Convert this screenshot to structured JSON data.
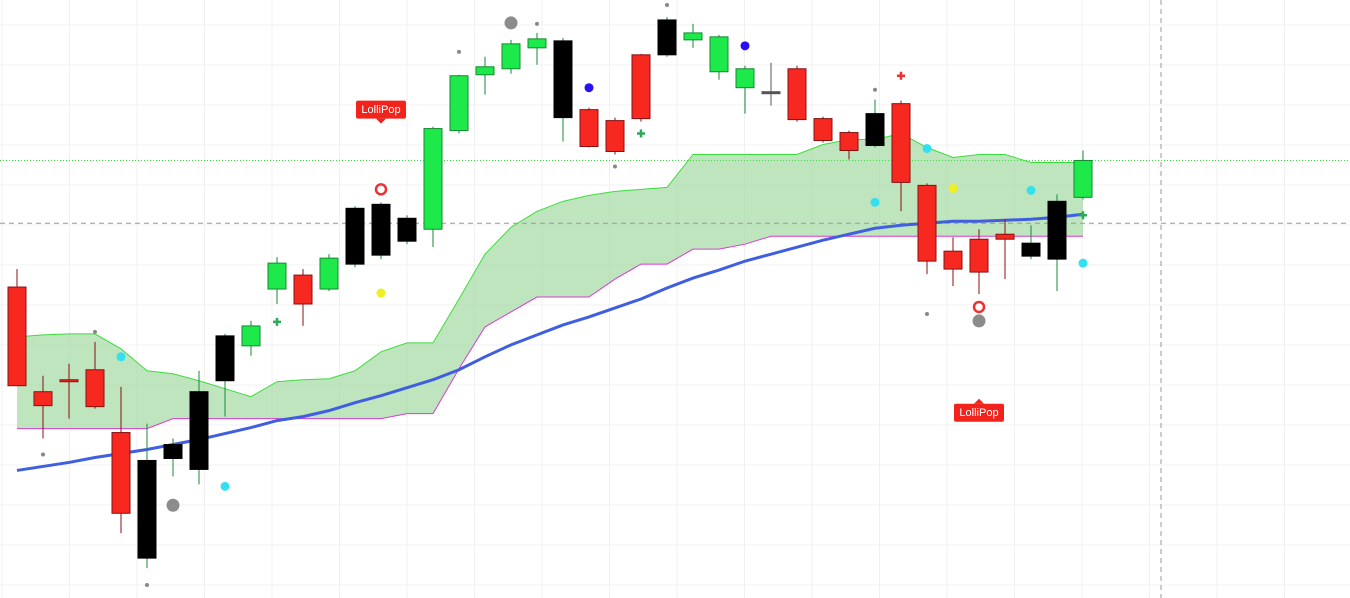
{
  "chart_data": {
    "type": "candlestick",
    "ylim": [
      0,
      600
    ],
    "candles": {
      "open": [
        312,
        207,
        219,
        229,
        166,
        138,
        154,
        207,
        263,
        253,
        310,
        324,
        310,
        391,
        395,
        381,
        370,
        469,
        525,
        531,
        552,
        559,
        490,
        479,
        545,
        580,
        560,
        528,
        512,
        508,
        531,
        481,
        467,
        486,
        496,
        414,
        348,
        360,
        365,
        356,
        398,
        402
      ],
      "high": [
        330,
        223,
        235,
        257,
        212,
        175,
        160,
        228,
        265,
        278,
        342,
        330,
        345,
        393,
        397,
        384,
        473,
        525,
        543,
        560,
        567,
        562,
        492,
        482,
        546,
        583,
        576,
        565,
        534,
        537,
        534,
        483,
        469,
        500,
        499,
        416,
        362,
        370,
        380,
        374,
        405,
        449
      ],
      "low": [
        213,
        160,
        180,
        190,
        65,
        30,
        122,
        114,
        182,
        243,
        295,
        273,
        308,
        332,
        340,
        355,
        352,
        466,
        505,
        526,
        535,
        458,
        452,
        445,
        478,
        543,
        552,
        520,
        486,
        494,
        478,
        457,
        440,
        452,
        388,
        325,
        313,
        305,
        320,
        340,
        308,
        400
      ],
      "close": [
        213,
        193,
        217,
        192,
        85,
        40,
        140,
        129,
        218,
        273,
        336,
        295,
        341,
        335,
        344,
        358,
        471,
        524,
        533,
        556,
        561,
        482,
        453,
        448,
        481,
        545,
        567,
        563,
        531,
        506,
        480,
        459,
        449,
        454,
        417,
        338,
        330,
        327,
        360,
        343,
        340,
        439
      ],
      "colors": [
        "#f6281f",
        "#f6281f",
        "#f6281f",
        "#f6281f",
        "#f6281f",
        "#000000",
        "#000000",
        "#000000",
        "#000000",
        "#1de94a",
        "#1de94a",
        "#f6281f",
        "#1de94a",
        "#000000",
        "#000000",
        "#000000",
        "#1de94a",
        "#1de94a",
        "#1de94a",
        "#1de94a",
        "#1de94a",
        "#000000",
        "#f6281f",
        "#f6281f",
        "#f6281f",
        "#000000",
        "#1de94a",
        "#1de94a",
        "#1de94a",
        "#555555",
        "#f6281f",
        "#f6281f",
        "#f6281f",
        "#000000",
        "#f6281f",
        "#f6281f",
        "#f6281f",
        "#f6281f",
        "#f6281f",
        "#000000",
        "#000000",
        "#1de94a"
      ]
    },
    "cloud": {
      "fill": "#a8dca8",
      "upper": {
        "color": "#3ddc3d",
        "values": [
          262,
          264,
          265,
          265,
          250,
          228,
          225,
          218,
          210,
          202,
          217,
          219,
          220,
          228,
          247,
          256,
          256,
          300,
          345,
          372,
          388,
          398,
          404,
          408,
          410,
          412,
          445,
          445,
          445,
          445,
          445,
          455,
          460,
          460,
          466,
          452,
          442,
          445,
          445,
          437,
          437,
          437
        ]
      },
      "lower": {
        "color": "#d63cd6",
        "values": [
          170,
          170,
          170,
          170,
          170,
          170,
          180,
          180,
          180,
          180,
          180,
          180,
          180,
          180,
          180,
          185,
          185,
          230,
          272,
          287,
          302,
          302,
          302,
          320,
          335,
          335,
          350,
          350,
          355,
          363,
          363,
          363,
          363,
          363,
          363,
          363,
          363,
          363,
          363,
          363,
          363,
          363
        ]
      }
    },
    "moving_average": {
      "color": "#3f5fe0",
      "values": [
        128,
        132,
        136,
        141,
        145,
        149,
        154,
        159,
        165,
        171,
        178,
        182,
        188,
        196,
        203,
        211,
        219,
        229,
        242,
        254,
        264,
        274,
        282,
        291,
        300,
        311,
        321,
        329,
        338,
        345,
        352,
        359,
        365,
        371,
        374,
        376,
        378,
        378,
        379,
        380,
        382,
        385
      ]
    },
    "markers": [
      {
        "shape": "dot",
        "color": "#33e0f0",
        "x": [
          4,
          8,
          33,
          35,
          39,
          41
        ],
        "y": [
          242,
          112,
          397,
          451,
          409,
          336
        ]
      },
      {
        "shape": "dot",
        "color": "#f0f020",
        "x": [
          14,
          36
        ],
        "y": [
          306,
          411
        ]
      },
      {
        "shape": "small-dot",
        "color": "#888888",
        "x": [
          1,
          3,
          5,
          17,
          20,
          23,
          25,
          33,
          35
        ],
        "y": [
          144,
          267,
          13,
          548,
          576,
          433,
          595,
          510,
          285
        ]
      },
      {
        "shape": "big-dot",
        "color": "#8c8c8c",
        "x": [
          19,
          37,
          6
        ],
        "y": [
          577,
          278,
          93
        ]
      },
      {
        "shape": "dot",
        "color": "#2a10f0",
        "x": [
          22,
          28
        ],
        "y": [
          512,
          554
        ]
      },
      {
        "shape": "ring",
        "color": "#f03030",
        "x": [
          14,
          37
        ],
        "y": [
          410,
          292
        ]
      },
      {
        "shape": "plus",
        "color": "#2ea85a",
        "x": [
          10,
          24,
          41
        ],
        "y": [
          277,
          466,
          384
        ]
      },
      {
        "shape": "plus",
        "color": "#f03030",
        "x": [
          34
        ],
        "y": [
          524
        ]
      }
    ],
    "annotations": [
      {
        "text": "LolliPop",
        "x": 14,
        "y": 469,
        "position": "above"
      },
      {
        "text": "LolliPop",
        "x": 37,
        "y": 207,
        "position": "below"
      }
    ],
    "price_line": {
      "value": 439,
      "color": "#3ddc3d"
    },
    "crosshair": {
      "x": 44,
      "y": 376,
      "color": "#999999"
    }
  }
}
